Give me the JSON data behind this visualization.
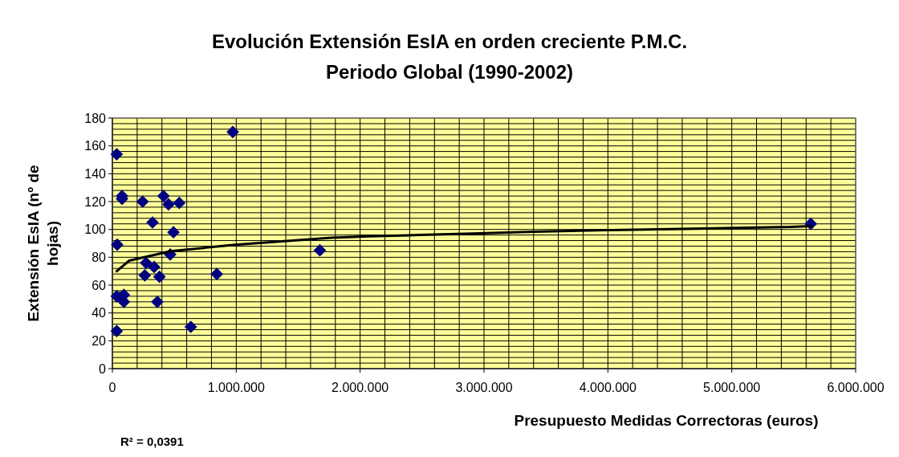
{
  "chart_data": {
    "type": "scatter",
    "title": "Evolución Extensión EsIA en orden creciente P.M.C.",
    "subtitle": "Periodo Global (1990-2002)",
    "xlabel": "Presupuesto Medidas Correctoras (euros)",
    "ylabel": "Extensión EsIA (nº de hojas)",
    "annotations": [
      "R² = 0,0391"
    ],
    "xlim": [
      0,
      6000000
    ],
    "ylim": [
      0,
      180
    ],
    "xticks": [
      0,
      {
        "value": 200000,
        "label": null
      },
      {
        "value": 400000,
        "label": null
      },
      {
        "value": 600000,
        "label": null
      },
      {
        "value": 800000,
        "label": null
      },
      {
        "value": 1000000,
        "label": "1.000.000"
      },
      {
        "value": 1200000,
        "label": null
      },
      {
        "value": 1400000,
        "label": null
      },
      {
        "value": 1600000,
        "label": null
      },
      {
        "value": 1800000,
        "label": null
      },
      {
        "value": 2000000,
        "label": "2.000.000"
      },
      {
        "value": 2200000,
        "label": null
      },
      {
        "value": 2400000,
        "label": null
      },
      {
        "value": 2600000,
        "label": null
      },
      {
        "value": 2800000,
        "label": null
      },
      {
        "value": 3000000,
        "label": "3.000.000"
      },
      {
        "value": 3200000,
        "label": null
      },
      {
        "value": 3400000,
        "label": null
      },
      {
        "value": 3600000,
        "label": null
      },
      {
        "value": 3800000,
        "label": null
      },
      {
        "value": 4000000,
        "label": "4.000.000"
      },
      {
        "value": 4200000,
        "label": null
      },
      {
        "value": 4400000,
        "label": null
      },
      {
        "value": 4600000,
        "label": null
      },
      {
        "value": 4800000,
        "label": null
      },
      {
        "value": 5000000,
        "label": "5.000.000"
      },
      {
        "value": 5200000,
        "label": null
      },
      {
        "value": 5400000,
        "label": null
      },
      {
        "value": 5600000,
        "label": null
      },
      {
        "value": 5800000,
        "label": null
      },
      {
        "value": 6000000,
        "label": "6.000.000"
      }
    ],
    "yticks": [
      0,
      {
        "value": 4,
        "label": null
      },
      {
        "value": 8,
        "label": null
      },
      {
        "value": 12,
        "label": null
      },
      {
        "value": 16,
        "label": null
      },
      20,
      {
        "value": 24,
        "label": null
      },
      {
        "value": 28,
        "label": null
      },
      {
        "value": 32,
        "label": null
      },
      {
        "value": 36,
        "label": null
      },
      40,
      {
        "value": 44,
        "label": null
      },
      {
        "value": 48,
        "label": null
      },
      {
        "value": 52,
        "label": null
      },
      {
        "value": 56,
        "label": null
      },
      60,
      {
        "value": 64,
        "label": null
      },
      {
        "value": 68,
        "label": null
      },
      {
        "value": 72,
        "label": null
      },
      {
        "value": 76,
        "label": null
      },
      80,
      {
        "value": 84,
        "label": null
      },
      {
        "value": 88,
        "label": null
      },
      {
        "value": 92,
        "label": null
      },
      {
        "value": 96,
        "label": null
      },
      100,
      {
        "value": 104,
        "label": null
      },
      {
        "value": 108,
        "label": null
      },
      {
        "value": 112,
        "label": null
      },
      {
        "value": 116,
        "label": null
      },
      120,
      {
        "value": 124,
        "label": null
      },
      {
        "value": 128,
        "label": null
      },
      {
        "value": 132,
        "label": null
      },
      {
        "value": 136,
        "label": null
      },
      140,
      {
        "value": 144,
        "label": null
      },
      {
        "value": 148,
        "label": null
      },
      {
        "value": 152,
        "label": null
      },
      {
        "value": 156,
        "label": null
      },
      160,
      {
        "value": 164,
        "label": null
      },
      {
        "value": 168,
        "label": null
      },
      {
        "value": 172,
        "label": null
      },
      {
        "value": 176,
        "label": null
      },
      180
    ],
    "grid": true,
    "marker": "diamond",
    "series": [
      {
        "color": "#000080",
        "x": [
          35000,
          78000,
          78000,
          244000,
          413000,
          453000,
          540000,
          324000,
          493000,
          39000,
          467000,
          272000,
          337000,
          262000,
          380000,
          843000,
          35000,
          93000,
          93000,
          61000,
          363000,
          35000,
          633000,
          972000,
          1675000,
          5638000
        ],
        "values": [
          154,
          124,
          122,
          120,
          124,
          118,
          119,
          105,
          98,
          89,
          82,
          76,
          73,
          67,
          66,
          68,
          52,
          53,
          48,
          51,
          48,
          27,
          30,
          170,
          85,
          104
        ]
      },
      {
        "type": "line",
        "color": "#000000",
        "marker": "none",
        "line_style": "solid",
        "x": [
          35000,
          136000,
          471000,
          990000,
          1768000,
          2070000,
          2480000,
          2910000,
          3410000,
          3990000,
          4684000,
          5480000,
          5640000
        ],
        "values": [
          70,
          77.6,
          84.4,
          89,
          94,
          95,
          96,
          97,
          98.3,
          99.5,
          100.5,
          101.8,
          102.4
        ]
      }
    ]
  }
}
